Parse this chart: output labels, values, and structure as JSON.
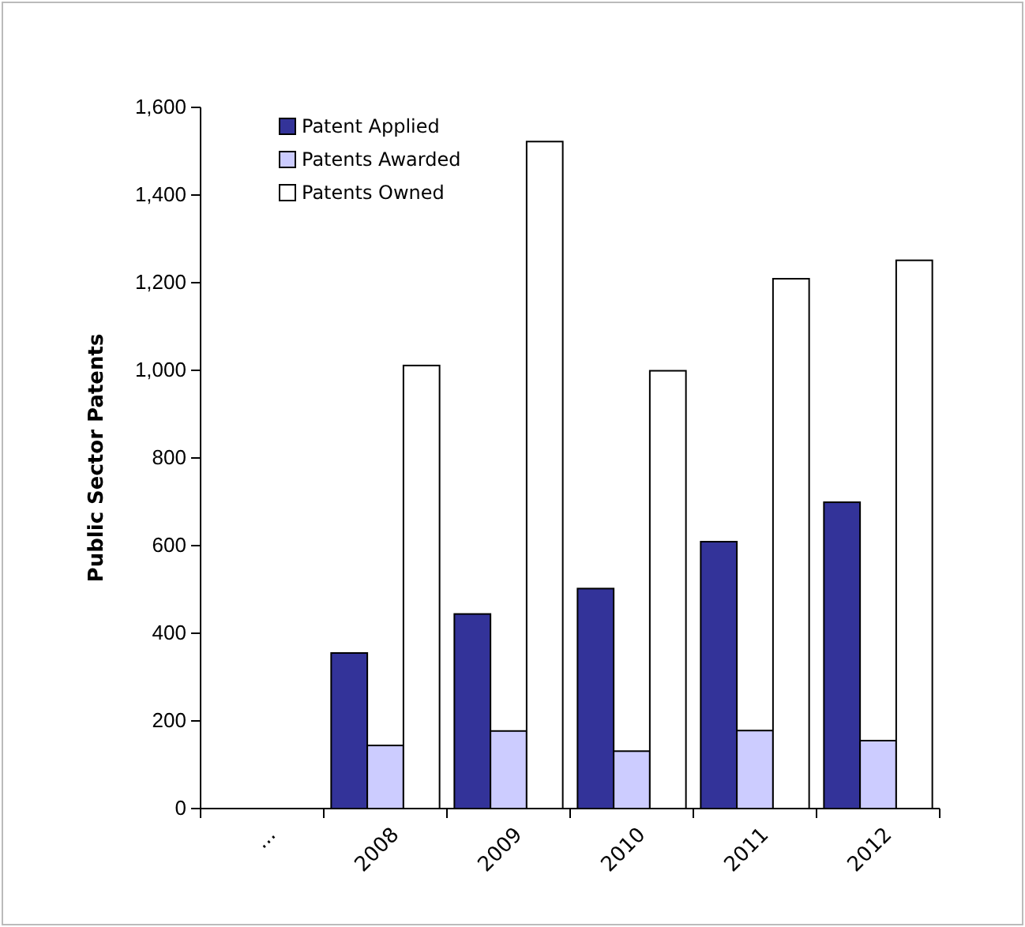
{
  "chart_data": {
    "type": "bar",
    "ylabel": "Public Sector Patents",
    "categories": [
      "...",
      "2008",
      "2009",
      "2010",
      "2011",
      "2012"
    ],
    "series": [
      {
        "name": "Patent Applied",
        "color": "#333399",
        "values": [
          null,
          355,
          444,
          502,
          609,
          699
        ]
      },
      {
        "name": "Patents Awarded",
        "color": "#ccccff",
        "values": [
          null,
          144,
          177,
          131,
          178,
          155
        ]
      },
      {
        "name": "Patents Owned",
        "color": "#ffffff",
        "values": [
          null,
          1011,
          1522,
          999,
          1209,
          1251
        ]
      }
    ],
    "ylim": [
      0,
      1600
    ],
    "yticks": [
      {
        "value": 0,
        "label": "0"
      },
      {
        "value": 200,
        "label": "200"
      },
      {
        "value": 400,
        "label": "400"
      },
      {
        "value": 600,
        "label": "600"
      },
      {
        "value": 800,
        "label": "800"
      },
      {
        "value": 1000,
        "label": "1,000"
      },
      {
        "value": 1200,
        "label": "1,200"
      },
      {
        "value": 1400,
        "label": "1,400"
      },
      {
        "value": 1600,
        "label": "1,600"
      }
    ],
    "grid": false,
    "legend": "top left"
  }
}
